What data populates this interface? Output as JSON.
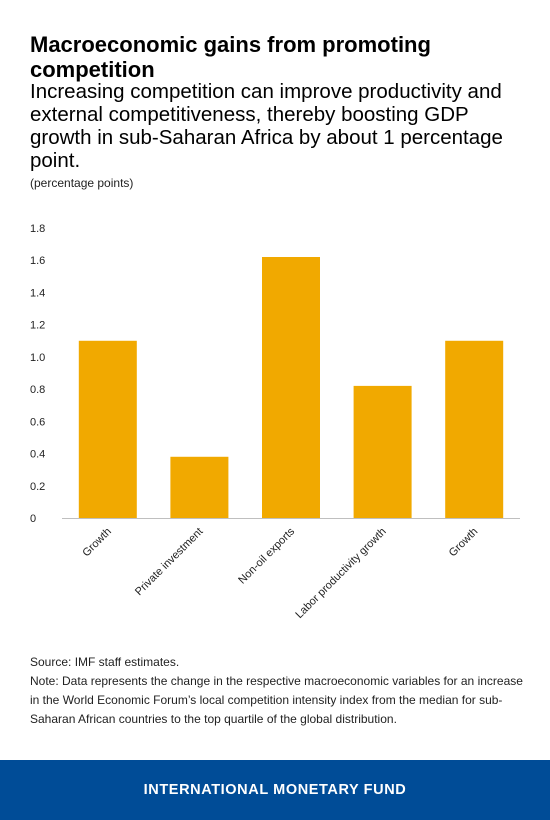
{
  "title": "Macroeconomic gains from promoting competition",
  "subtitle": "Increasing competition can improve productivity and external competitiveness, thereby boosting GDP growth in sub-Saharan Africa by about 1 percentage point.",
  "units_label": "(percentage points)",
  "source": "Source: IMF staff estimates.",
  "note": "Note: Data represents the change in the respective macroeconomic variables for an increase in the World Economic Forum’s local competition intensity index from the median for sub-Saharan African countries to the top quartile of the global distribution.",
  "footer": "INTERNATIONAL MONETARY FUND",
  "colors": {
    "bar": "#F1A900",
    "footer_bg": "#004C97",
    "axis": "#BFBFBF"
  },
  "chart_data": {
    "type": "bar",
    "title": "Macroeconomic gains from promoting competition",
    "ylabel": "(percentage points)",
    "xlabel": "",
    "categories": [
      "Growth",
      "Private investment",
      "Non-oil exports",
      "Labor productivity growth",
      "Growth"
    ],
    "values": [
      1.1,
      0.38,
      1.62,
      0.82,
      1.1
    ],
    "ylim": [
      0,
      1.8
    ],
    "yticks": [
      "0",
      "0.2",
      "0.4",
      "0.6",
      "0.8",
      "1.0",
      "1.2",
      "1.4",
      "1.6",
      "1.8"
    ],
    "grid": false,
    "legend": "none"
  }
}
